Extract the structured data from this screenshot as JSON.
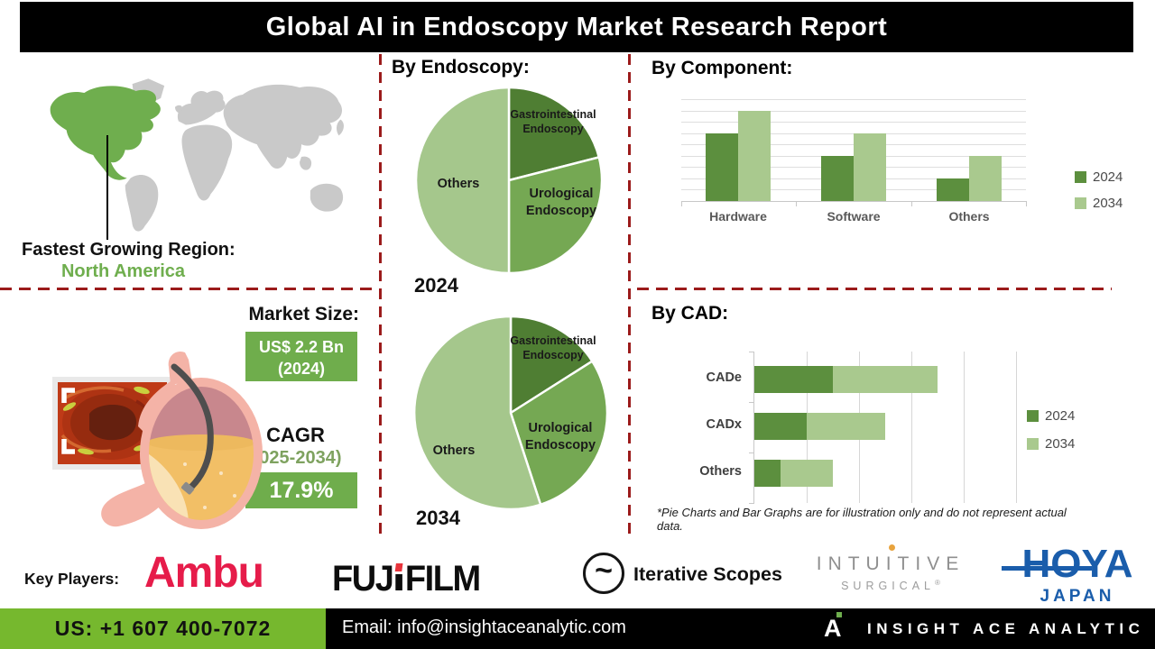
{
  "title": "Global AI in Endoscopy Market Research Report",
  "region": {
    "label": "Fastest Growing Region:",
    "value": "North America"
  },
  "market_size": {
    "heading": "Market Size:",
    "value_line1": "US$ 2.2 Bn",
    "value_line2": "(2024)",
    "cagr_label": "CAGR",
    "cagr_period": "(2025-2034)",
    "cagr_value": "17.9%"
  },
  "chart_data": [
    {
      "type": "pie",
      "title": "By Endoscopy:",
      "year_label": "2024",
      "labels": [
        "Gastrointestinal Endoscopy",
        "Urological Endoscopy",
        "Others"
      ],
      "values": [
        21,
        29,
        50
      ],
      "colors": [
        "#4f7e33",
        "#75a853",
        "#a5c78c"
      ],
      "legend_position": "inside"
    },
    {
      "type": "pie",
      "title": "By Endoscopy:",
      "year_label": "2034",
      "labels": [
        "Gastrointestinal Endoscopy",
        "Urological Endoscopy",
        "Others"
      ],
      "values": [
        16,
        29,
        55
      ],
      "colors": [
        "#4f7e33",
        "#75a853",
        "#a5c78c"
      ],
      "legend_position": "inside"
    },
    {
      "type": "bar",
      "title": "By  Component:",
      "categories": [
        "Hardware",
        "Software",
        "Others"
      ],
      "series": [
        {
          "name": "2024",
          "color": "#5c8f3e",
          "values": [
            6,
            4,
            2
          ]
        },
        {
          "name": "2034",
          "color": "#a9c98e",
          "values": [
            8,
            6,
            4
          ]
        }
      ],
      "ylim": [
        0,
        9
      ],
      "grid": true,
      "legend_position": "right"
    },
    {
      "type": "stacked-hbar",
      "title": "By CAD:",
      "categories": [
        "CADe",
        "CADx",
        "Others"
      ],
      "series": [
        {
          "name": "2024",
          "color": "#5c8f3e",
          "values": [
            1.5,
            1,
            0.5
          ]
        },
        {
          "name": "2034",
          "color": "#a9c98e",
          "values": [
            2,
            1.5,
            1
          ]
        }
      ],
      "xlim": [
        0,
        5
      ],
      "grid": true,
      "legend_position": "right"
    }
  ],
  "footnote": "*Pie Charts and Bar Graphs are for illustration only and do not represent actual data.",
  "key_players": {
    "label": "Key Players:",
    "ambu": "Ambu",
    "fujifilm_left": "FUJ",
    "fujifilm_right": "FILM",
    "iterative_icon": "~",
    "iterative": "Iterative Scopes",
    "intuitive": "INTUITIVE",
    "surgical": "SURGICAL",
    "reg_mark": "®",
    "hoya": "HOYA",
    "japan": "JAPAN",
    "companies": [
      "Ambu",
      "FUJIFILM",
      "Iterative Scopes",
      "Intuitive Surgical",
      "HOYA Japan"
    ]
  },
  "footer": {
    "phone": "US: +1 607 400-7072",
    "email": "Email: info@insightaceanalytic.com",
    "brand": "INSIGHT ACE ANALYTIC",
    "logo_letter": "A"
  },
  "colors": {
    "dark_green": "#4f7e33",
    "mid_green": "#75a853",
    "light_green": "#a5c78c",
    "map_green": "#6fae4e",
    "bright_green": "#76b82e",
    "dashed_red": "#9b1b1b",
    "ambu_red": "#e61c4a",
    "fuji_red": "#e8343c",
    "hoya_blue": "#1a5dab",
    "intuitive_orange": "#e8a33d"
  }
}
